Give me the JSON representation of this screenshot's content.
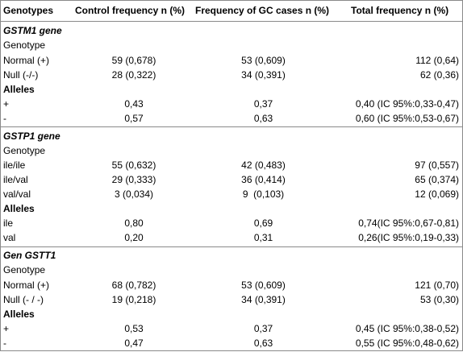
{
  "header": {
    "col0": "Genotypes",
    "col1": "Control frequency n (%)",
    "col2": "Frequency of GC cases n (%)",
    "col3": "Total frequency n (%)"
  },
  "sections": [
    {
      "title": "GSTM1 gene",
      "genotype_label": "Genotype",
      "genotypes": [
        {
          "name": "Normal (+)",
          "control": "59 (0,678)",
          "cases": "53 (0,609)",
          "total": "112 (0,64)"
        },
        {
          "name": "Null (-/-)",
          "control": "28 (0,322)",
          "cases": "34 (0,391)",
          "total": "62 (0,36)"
        }
      ],
      "alleles_label": "Alleles",
      "alleles": [
        {
          "name": "+",
          "control": "0,43",
          "cases": "0,37",
          "total": "0,40 (IC 95%:0,33-0,47)"
        },
        {
          "name": "-",
          "control": "0,57",
          "cases": "0,63",
          "total": "0,60 (IC 95%:0,53-0,67)"
        }
      ]
    },
    {
      "title": "GSTP1 gene",
      "genotype_label": "Genotype",
      "genotypes": [
        {
          "name": "ile/ile",
          "control": "55 (0,632)",
          "cases": "42 (0,483)",
          "total": "97 (0,557)"
        },
        {
          "name": "ile/val",
          "control": "29 (0,333)",
          "cases": "36 (0,414)",
          "total": "65 (0,374)"
        },
        {
          "name": "val/val",
          "control": "3 (0,034)",
          "cases": "9  (0,103)",
          "total": "12 (0,069)"
        }
      ],
      "alleles_label": "Alleles",
      "alleles": [
        {
          "name": "ile",
          "control": "0,80",
          "cases": "0,69",
          "total": "0,74(IC 95%:0,67-0,81)"
        },
        {
          "name": "val",
          "control": "0,20",
          "cases": "0,31",
          "total": "0,26(IC 95%:0,19-0,33)"
        }
      ]
    },
    {
      "title": "Gen GSTT1",
      "genotype_label": "Genotype",
      "genotypes": [
        {
          "name": "Normal (+)",
          "control": "68 (0,782)",
          "cases": "53 (0,609)",
          "total": "121 (0,70)"
        },
        {
          "name": "Null (- / -)",
          "control": "19 (0,218)",
          "cases": "34 (0,391)",
          "total": "53 (0,30)"
        }
      ],
      "alleles_label": "Alleles",
      "alleles": [
        {
          "name": "+",
          "control": "0,53",
          "cases": "0,37",
          "total": "0,45 (IC 95%:0,38-0,52)"
        },
        {
          "name": "-",
          "control": "0,47",
          "cases": "0,63",
          "total": "0,55 (IC 95%:0,48-0,62)"
        }
      ]
    }
  ]
}
